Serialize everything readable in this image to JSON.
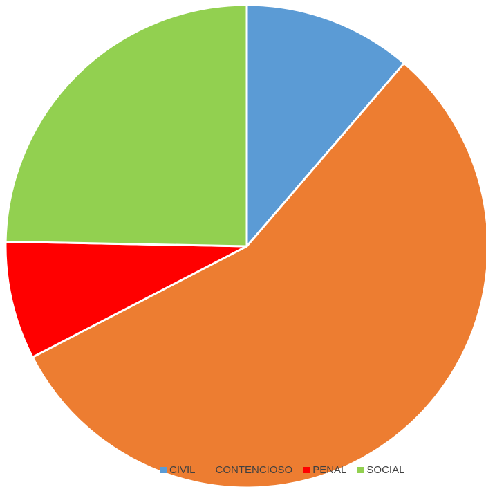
{
  "chart_data": {
    "type": "pie",
    "categories": [
      "CIVIL",
      "CONTENCIOSO",
      "PENAL",
      "SOCIAL"
    ],
    "values": [
      11.3,
      56.1,
      7.9,
      24.7
    ],
    "colors": [
      "#5B9BD5",
      "#ED7D31",
      "#FF0000",
      "#92D050"
    ],
    "start_angle_deg": 0,
    "direction": "clockwise",
    "slice_border_color": "#ffffff",
    "legend_position": "bottom"
  }
}
